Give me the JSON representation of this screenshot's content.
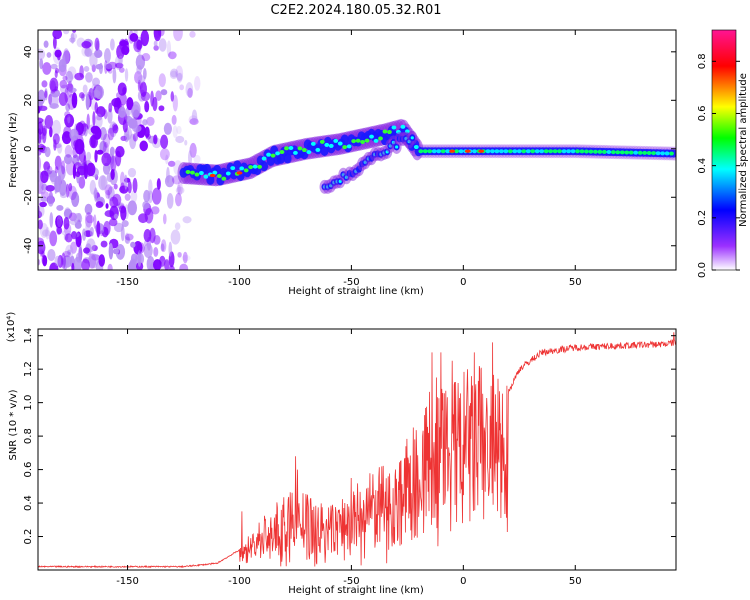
{
  "title": "C2E2.2024.180.05.32.R01",
  "chart_data": [
    {
      "type": "heatmap",
      "xlabel": "Height of straight line (km)",
      "ylabel": "Frequency (Hz)",
      "xlim": [
        -190,
        95
      ],
      "ylim": [
        -50,
        49
      ],
      "xticks": [
        -150,
        -100,
        -50,
        0,
        50
      ],
      "yticks": [
        -40,
        -20,
        0,
        20,
        40
      ],
      "colorbar": {
        "label": "Normalized spectral amplitude",
        "range": [
          0,
          0.92
        ],
        "ticks": [
          0.0,
          0.2,
          0.4,
          0.6,
          0.8
        ],
        "colormap": [
          "#ffffff",
          "#7f00ff",
          "#0000ff",
          "#00ffff",
          "#00ff00",
          "#ffff00",
          "#ff0000",
          "#ff1493"
        ]
      },
      "trace": {
        "points": [
          [
            -125,
            -10
          ],
          [
            -110,
            -11
          ],
          [
            -95,
            -8
          ],
          [
            -85,
            -3
          ],
          [
            -70,
            0
          ],
          [
            -55,
            2
          ],
          [
            -45,
            4
          ],
          [
            -35,
            6
          ],
          [
            -27,
            8
          ],
          [
            -20,
            -1
          ],
          [
            0,
            -1
          ],
          [
            20,
            -1
          ],
          [
            50,
            -1
          ],
          [
            95,
            -2
          ]
        ]
      },
      "branches": [
        [
          [
            -62,
            -16
          ],
          [
            -50,
            -10
          ],
          [
            -40,
            -4
          ],
          [
            -30,
            2
          ],
          [
            -22,
            5
          ]
        ]
      ]
    },
    {
      "type": "line",
      "xlabel": "Height of straight line (km)",
      "ylabel": "SNR (10 * v/v)",
      "yscale_label": "(x10⁴)",
      "xlim": [
        -190,
        95
      ],
      "ylim": [
        0,
        1.44
      ],
      "xticks": [
        -150,
        -100,
        -50,
        0,
        50
      ],
      "yticks": [
        0.2,
        0.4,
        0.6,
        0.8,
        1.0,
        1.2,
        1.4
      ],
      "color": "#ee3333",
      "envelope": [
        [
          -190,
          0.02
        ],
        [
          -125,
          0.02
        ],
        [
          -110,
          0.04
        ],
        [
          -100,
          0.12
        ],
        [
          -90,
          0.3
        ],
        [
          -75,
          0.45
        ],
        [
          -60,
          0.35
        ],
        [
          -50,
          0.45
        ],
        [
          -40,
          0.55
        ],
        [
          -30,
          0.6
        ],
        [
          -22,
          0.8
        ],
        [
          -15,
          1.0
        ],
        [
          -5,
          1.05
        ],
        [
          0,
          1.1
        ],
        [
          10,
          1.15
        ],
        [
          18,
          1.0
        ],
        [
          25,
          1.2
        ],
        [
          35,
          1.3
        ],
        [
          50,
          1.33
        ],
        [
          70,
          1.34
        ],
        [
          90,
          1.35
        ],
        [
          95,
          1.36
        ]
      ],
      "peaks": [
        [
          -99,
          0.35
        ],
        [
          -75,
          0.68
        ],
        [
          -74,
          0.6
        ],
        [
          -50,
          0.55
        ],
        [
          -28,
          0.65
        ],
        [
          -14,
          1.3
        ],
        [
          -12,
          1.15
        ],
        [
          -10,
          1.3
        ],
        [
          -5,
          1.25
        ],
        [
          5,
          1.3
        ],
        [
          13,
          1.36
        ],
        [
          94,
          1.42
        ]
      ]
    }
  ]
}
